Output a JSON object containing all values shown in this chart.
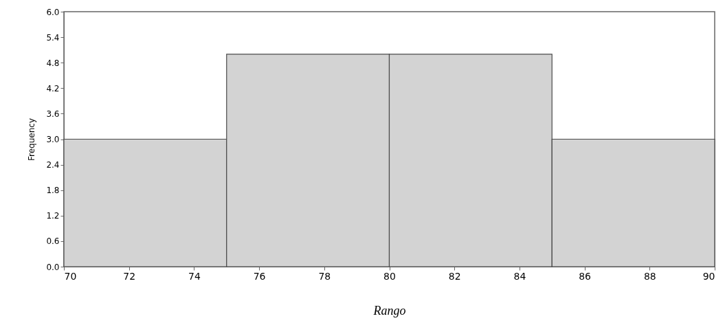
{
  "chart_data": {
    "type": "histogram",
    "xlabel": "Rango",
    "ylabel": "Frequency",
    "bins": [
      70,
      75,
      80,
      85,
      90
    ],
    "values": [
      3,
      5,
      5,
      3
    ],
    "color": "#d3d3d3",
    "xlim": [
      70,
      90
    ],
    "xticks": [
      70,
      72,
      74,
      76,
      78,
      80,
      82,
      84,
      86,
      88,
      90
    ],
    "ylim": [
      0,
      6
    ],
    "yticks": [
      {
        "value": 0,
        "label": "0.0"
      },
      0.6,
      1.2,
      1.8,
      2.4,
      {
        "value": 3,
        "label": "3.0"
      },
      3.6,
      4.2,
      4.8,
      5.4,
      {
        "value": 6,
        "label": "6.0"
      }
    ],
    "grid": false
  }
}
